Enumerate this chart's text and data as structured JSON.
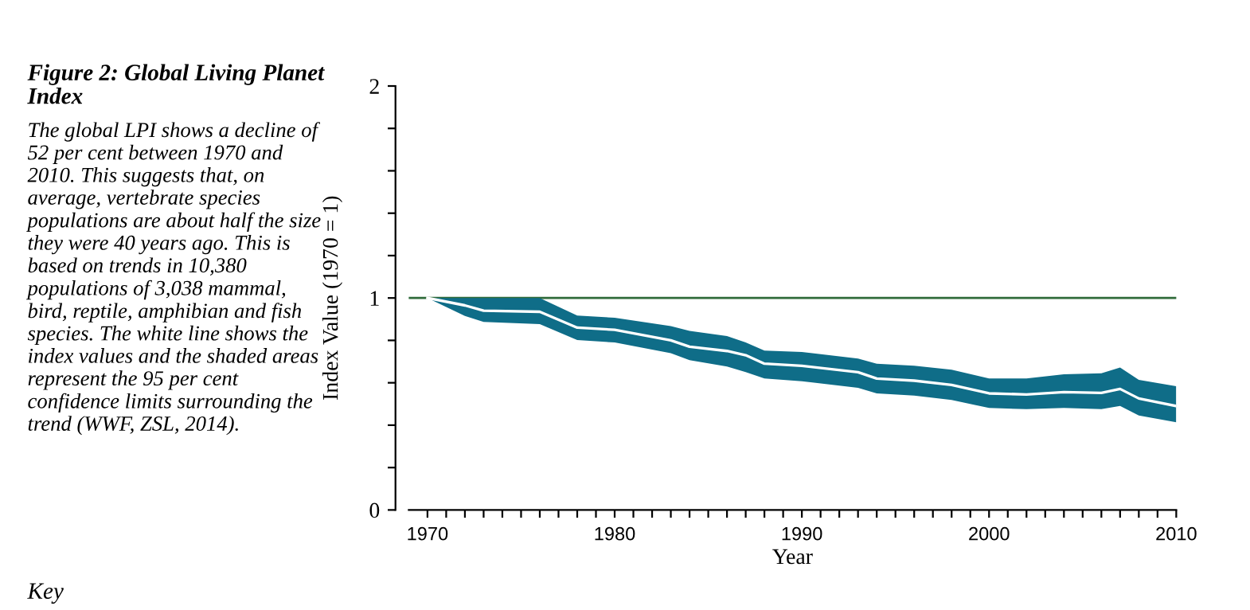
{
  "chart_data": {
    "type": "line",
    "title": "Figure 2: Global Living Planet Index",
    "subtitle": "The global LPI shows a decline of 52 per cent between 1970 and 2010. This suggests that, on average, vertebrate species populations are about half the size they were 40 years ago. This is based on trends in 10,380 populations of 3,038 mammal, bird, reptile, amphibian and fish species. The white line shows the index values and the shaded areas represent the 95 per cent confidence limits surrounding the trend (WWF, ZSL, 2014).",
    "annotations": [
      "Key"
    ],
    "xlabel": "Year",
    "ylabel": "Index Value (1970 = 1)",
    "x": [
      1970,
      1972,
      1973,
      1976,
      1978,
      1980,
      1983,
      1984,
      1986,
      1987,
      1988,
      1990,
      1993,
      1994,
      1996,
      1998,
      2000,
      2002,
      2004,
      2006,
      2007,
      2008,
      2010
    ],
    "series": [
      {
        "color": "#ffffff",
        "values": [
          1.0,
          0.965,
          0.94,
          0.935,
          0.86,
          0.85,
          0.8,
          0.77,
          0.75,
          0.73,
          0.69,
          0.68,
          0.65,
          0.62,
          0.61,
          0.59,
          0.55,
          0.545,
          0.556,
          0.552,
          0.571,
          0.526,
          0.49
        ],
        "lower": [
          1.0,
          0.915,
          0.887,
          0.877,
          0.802,
          0.79,
          0.74,
          0.707,
          0.677,
          0.65,
          0.62,
          0.607,
          0.576,
          0.55,
          0.54,
          0.519,
          0.481,
          0.476,
          0.481,
          0.476,
          0.491,
          0.446,
          0.414
        ],
        "upper": [
          1.0,
          1.0,
          1.0,
          1.0,
          0.917,
          0.907,
          0.867,
          0.845,
          0.82,
          0.79,
          0.752,
          0.745,
          0.714,
          0.69,
          0.68,
          0.662,
          0.62,
          0.62,
          0.64,
          0.645,
          0.672,
          0.614,
          0.584
        ]
      }
    ],
    "ref_lines": [
      {
        "axis": "y",
        "value": 1,
        "color": "#2f6b3a"
      }
    ],
    "xlim": [
      1969,
      2010
    ],
    "xticks": [
      1970,
      {
        "value": 1971,
        "label": null
      },
      {
        "value": 1972,
        "label": null
      },
      {
        "value": 1973,
        "label": null
      },
      {
        "value": 1974,
        "label": null
      },
      {
        "value": 1975,
        "label": null
      },
      {
        "value": 1976,
        "label": null
      },
      {
        "value": 1977,
        "label": null
      },
      {
        "value": 1978,
        "label": null
      },
      {
        "value": 1979,
        "label": null
      },
      1980,
      {
        "value": 1981,
        "label": null
      },
      {
        "value": 1982,
        "label": null
      },
      {
        "value": 1983,
        "label": null
      },
      {
        "value": 1984,
        "label": null
      },
      {
        "value": 1985,
        "label": null
      },
      {
        "value": 1986,
        "label": null
      },
      {
        "value": 1987,
        "label": null
      },
      {
        "value": 1988,
        "label": null
      },
      {
        "value": 1989,
        "label": null
      },
      1990,
      {
        "value": 1991,
        "label": null
      },
      {
        "value": 1992,
        "label": null
      },
      {
        "value": 1993,
        "label": null
      },
      {
        "value": 1994,
        "label": null
      },
      {
        "value": 1995,
        "label": null
      },
      {
        "value": 1996,
        "label": null
      },
      {
        "value": 1997,
        "label": null
      },
      {
        "value": 1998,
        "label": null
      },
      {
        "value": 1999,
        "label": null
      },
      2000,
      {
        "value": 2001,
        "label": null
      },
      {
        "value": 2002,
        "label": null
      },
      {
        "value": 2003,
        "label": null
      },
      {
        "value": 2004,
        "label": null
      },
      {
        "value": 2005,
        "label": null
      },
      {
        "value": 2006,
        "label": null
      },
      {
        "value": 2007,
        "label": null
      },
      {
        "value": 2008,
        "label": null
      },
      {
        "value": 2009,
        "label": null
      },
      2010
    ],
    "ylim": [
      0,
      2
    ],
    "yticks": [
      0,
      {
        "value": 0.2,
        "label": null
      },
      {
        "value": 0.4,
        "label": null
      },
      {
        "value": 0.6,
        "label": null
      },
      {
        "value": 0.8,
        "label": null
      },
      1,
      {
        "value": 1.2,
        "label": null
      },
      {
        "value": 1.4,
        "label": null
      },
      {
        "value": 1.6,
        "label": null
      },
      {
        "value": 1.8,
        "label": null
      },
      2
    ],
    "grid": false,
    "legend": false
  }
}
